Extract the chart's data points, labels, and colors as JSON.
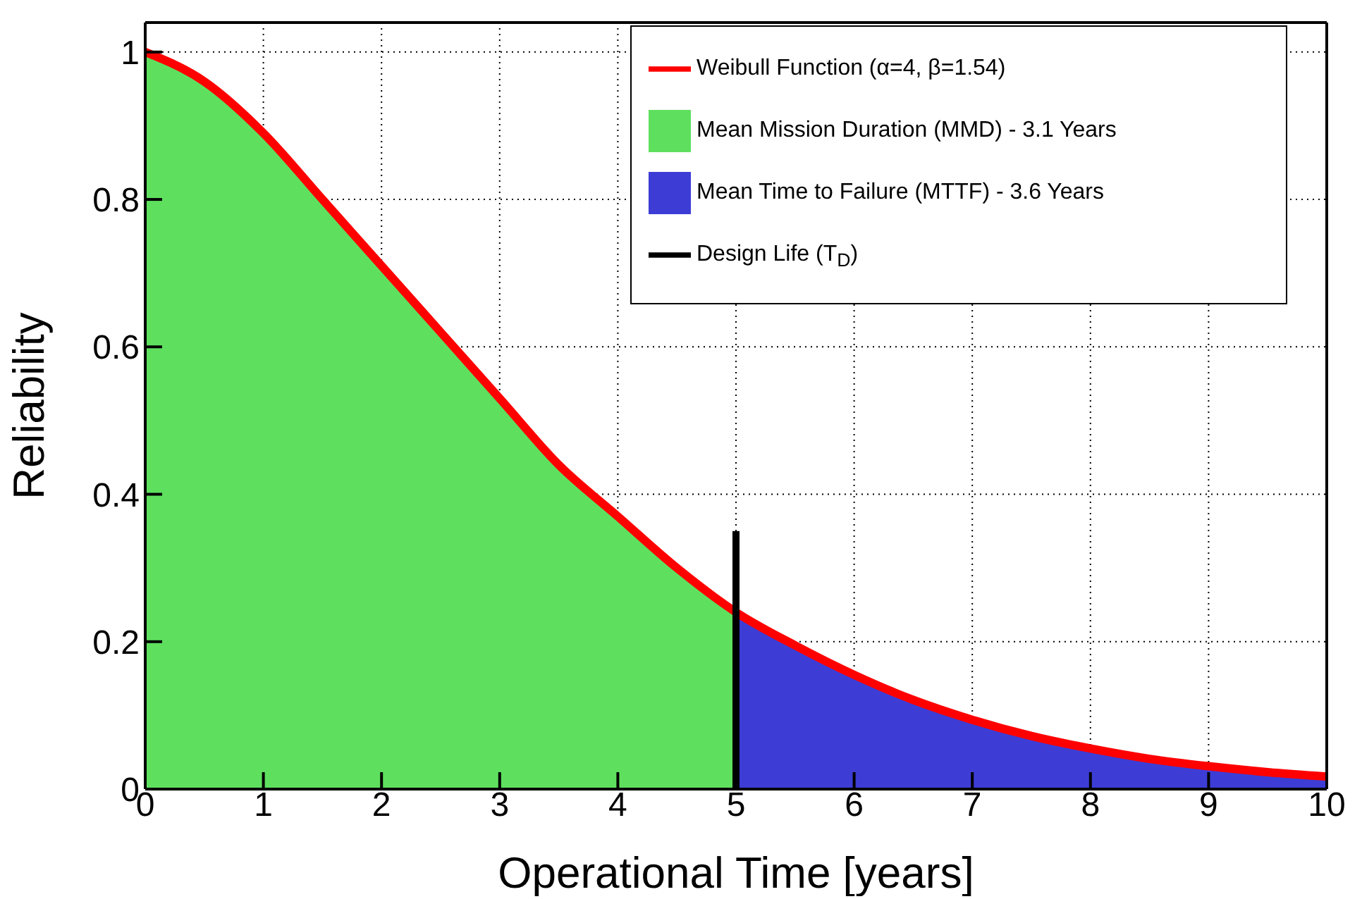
{
  "chart_data": {
    "type": "line",
    "xlabel": "Operational Time [years]",
    "ylabel": "Reliability",
    "xlim": [
      0,
      10
    ],
    "xticks": [
      0,
      1,
      2,
      3,
      4,
      5,
      6,
      7,
      8,
      9,
      10
    ],
    "ylim": [
      0,
      1.04
    ],
    "yticks": [
      0,
      0.2,
      0.4,
      0.6,
      0.8,
      1
    ],
    "grid": true,
    "legend": "top right",
    "series": [
      {
        "type": "line",
        "name": "Weibull Function (α=4, β=1.54)",
        "color": "#ff0000",
        "x": [
          0,
          0.5,
          1,
          1.5,
          2,
          2.5,
          3,
          3.5,
          4,
          4.5,
          5,
          5.5,
          6,
          6.5,
          7,
          7.5,
          8,
          8.5,
          9,
          9.5,
          10
        ],
        "values": [
          1,
          0.96,
          0.89,
          0.8,
          0.71,
          0.62,
          0.53,
          0.44,
          0.37,
          0.3,
          0.24,
          0.195,
          0.155,
          0.121,
          0.094,
          0.072,
          0.055,
          0.041,
          0.031,
          0.023,
          0.017
        ]
      },
      {
        "type": "area",
        "name": "Mean Mission Duration (MMD) - 3.1 Years",
        "color": "#5ee05e",
        "x": [
          0,
          0.5,
          1,
          1.5,
          2,
          2.5,
          3,
          3.5,
          4,
          4.5,
          5
        ],
        "values": [
          1,
          0.96,
          0.89,
          0.8,
          0.71,
          0.62,
          0.53,
          0.44,
          0.37,
          0.3,
          0.24
        ]
      },
      {
        "type": "area",
        "name": "Mean Time to Failure (MTTF) - 3.6 Years",
        "color": "#3d3dd6",
        "x": [
          5,
          5.5,
          6,
          6.5,
          7,
          7.5,
          8,
          8.5,
          9,
          9.5,
          10
        ],
        "values": [
          0.24,
          0.195,
          0.155,
          0.121,
          0.094,
          0.072,
          0.055,
          0.041,
          0.031,
          0.023,
          0.017
        ]
      },
      {
        "type": "line",
        "name": "Design Life (T$_{D}$)",
        "color": "#000000",
        "x": [
          5,
          5
        ],
        "values": [
          0,
          0.35
        ]
      }
    ]
  }
}
